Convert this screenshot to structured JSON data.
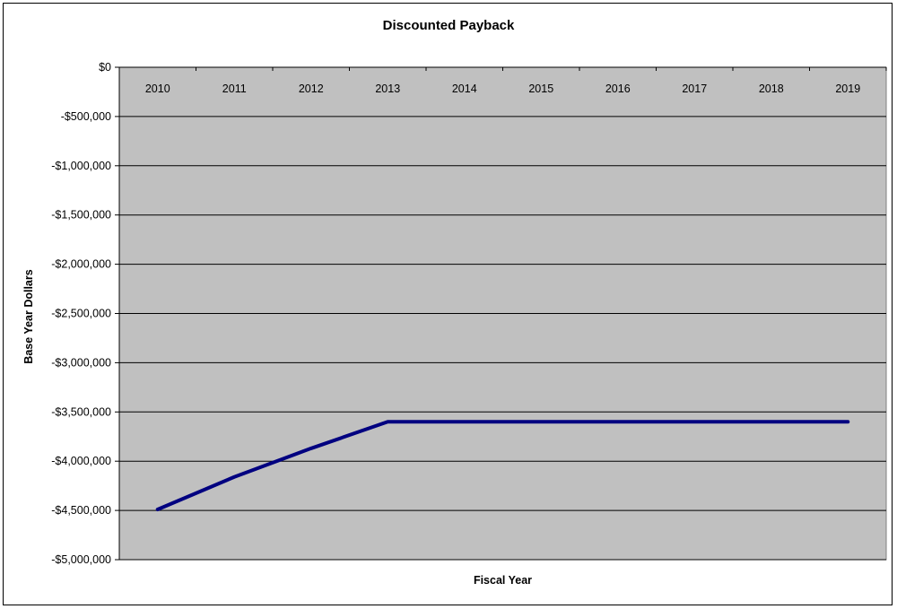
{
  "chart_data": {
    "type": "line",
    "title": "Discounted Payback",
    "xlabel": "Fiscal Year",
    "ylabel": "Base Year Dollars",
    "categories": [
      "2010",
      "2011",
      "2012",
      "2013",
      "2014",
      "2015",
      "2016",
      "2017",
      "2018",
      "2019"
    ],
    "series": [
      {
        "values": [
          -4490000,
          -4160000,
          -3870000,
          -3600000,
          -3600000,
          -3600000,
          -3600000,
          -3600000,
          -3600000,
          -3600000
        ]
      }
    ],
    "ylim": [
      -5000000,
      0
    ],
    "y_ticks": [
      0,
      -500000,
      -1000000,
      -1500000,
      -2000000,
      -2500000,
      -3000000,
      -3500000,
      -4000000,
      -4500000,
      -5000000
    ],
    "y_tick_labels": [
      "$0",
      "-$500,000",
      "-$1,000,000",
      "-$1,500,000",
      "-$2,000,000",
      "-$2,500,000",
      "-$3,000,000",
      "-$3,500,000",
      "-$4,000,000",
      "-$4,500,000",
      "-$5,000,000"
    ],
    "x_axis_position": "top",
    "grid": true,
    "colors": {
      "plot_background": "#c0c0c0",
      "line": "#000080",
      "gridline": "#000000"
    }
  }
}
